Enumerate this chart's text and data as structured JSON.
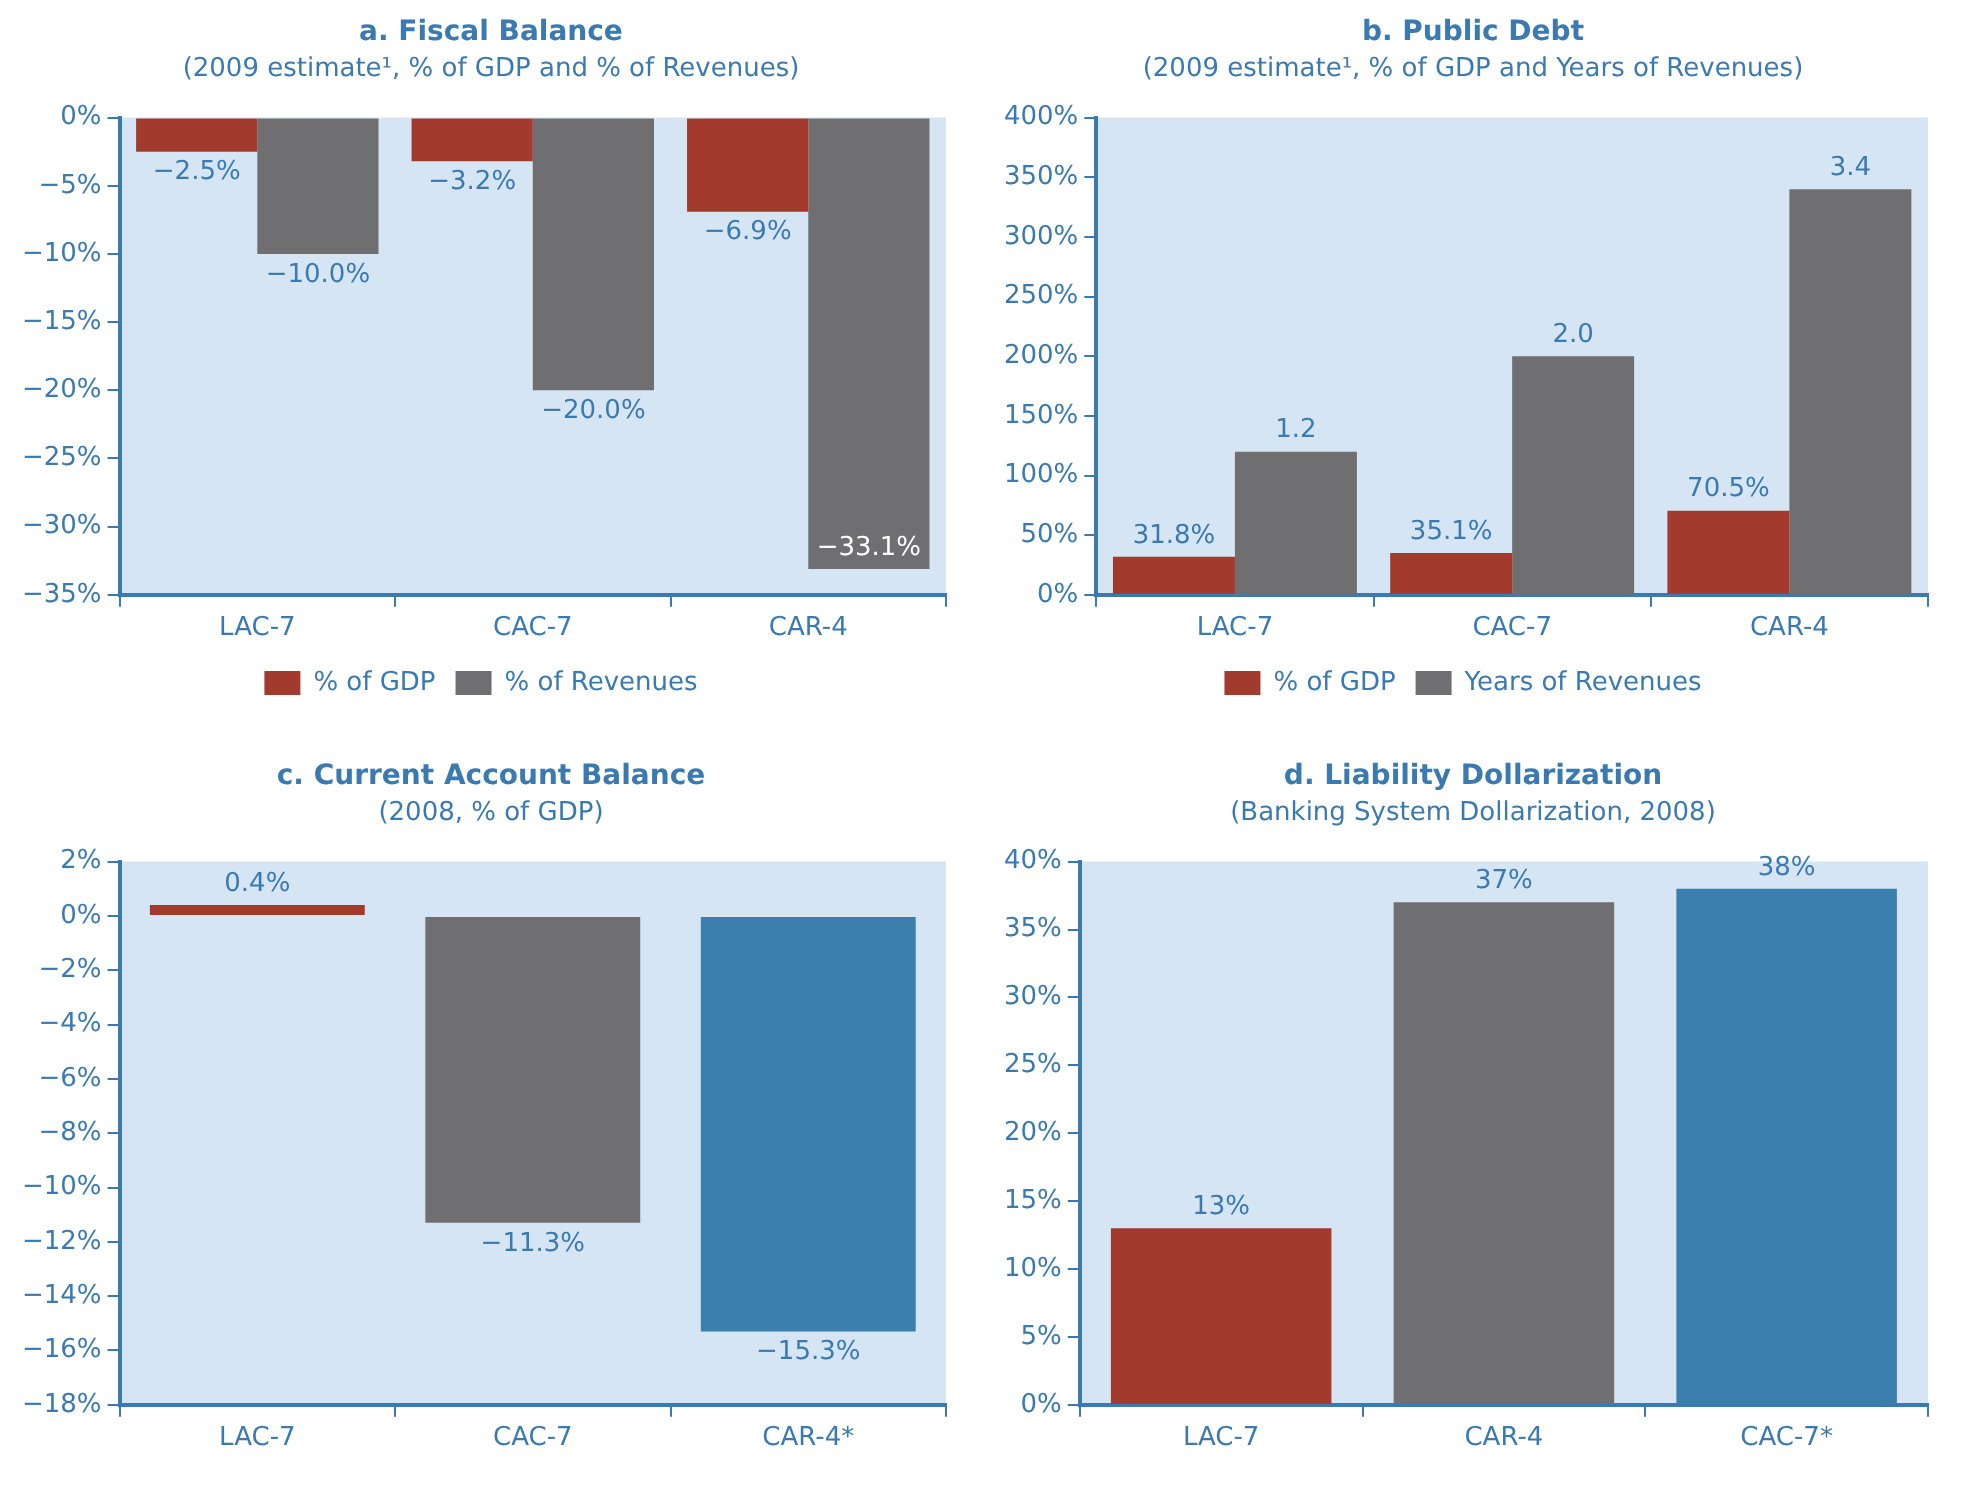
{
  "chart_data": [
    {
      "type": "bar",
      "title": "a. Fiscal Balance",
      "subtitle": "(2009 estimate¹, % of GDP and % of Revenues)",
      "categories": [
        "LAC-7",
        "CAC-7",
        "CAR-4"
      ],
      "series": [
        {
          "name": "% of GDP",
          "color": "#a33a2e",
          "values": [
            -2.5,
            -3.2,
            -6.9
          ],
          "value_labels": [
            "−2.5%",
            "−3.2%",
            "−6.9%"
          ]
        },
        {
          "name": "% of Revenues",
          "color": "#6f6f72",
          "values": [
            -10.0,
            -20.0,
            -33.1
          ],
          "value_labels": [
            "−10.0%",
            "−20.0%",
            "−33.1%"
          ]
        }
      ],
      "ylim": [
        -35,
        0
      ],
      "yticks": [
        {
          "value": 0,
          "label": "0%"
        },
        {
          "value": -5,
          "label": "−5%"
        },
        {
          "value": -10,
          "label": "−10%"
        },
        {
          "value": -15,
          "label": "−15%"
        },
        {
          "value": -20,
          "label": "−20%"
        },
        {
          "value": -25,
          "label": "−25%"
        },
        {
          "value": -30,
          "label": "−30%"
        },
        {
          "value": -35,
          "label": "−35%"
        }
      ],
      "grid": false,
      "legend": "bottom"
    },
    {
      "type": "bar",
      "title": "b. Public Debt",
      "subtitle": "(2009 estimate¹, % of GDP and Years of Revenues)",
      "categories": [
        "LAC-7",
        "CAC-7",
        "CAR-4"
      ],
      "series": [
        {
          "name": "% of GDP",
          "color": "#a33a2e",
          "values": [
            31.8,
            35.1,
            70.5
          ],
          "value_labels": [
            "31.8%",
            "35.1%",
            "70.5%"
          ]
        },
        {
          "name": "Years of Revenues",
          "color": "#6f6f72",
          "values": [
            1.2,
            2.0,
            3.4
          ],
          "value_labels": [
            "1.2",
            "2.0",
            "3.4"
          ],
          "axis": "y2"
        }
      ],
      "y2lim": [
        0,
        4
      ],
      "ylim": [
        0,
        400
      ],
      "yticks": [
        {
          "value": 0,
          "label": "0%"
        },
        {
          "value": 50,
          "label": "50%"
        },
        {
          "value": 100,
          "label": "100%"
        },
        {
          "value": 150,
          "label": "150%"
        },
        {
          "value": 200,
          "label": "200%"
        },
        {
          "value": 250,
          "label": "250%"
        },
        {
          "value": 300,
          "label": "300%"
        },
        {
          "value": 350,
          "label": "350%"
        },
        {
          "value": 400,
          "label": "400%"
        }
      ],
      "grid": false,
      "legend": "bottom"
    },
    {
      "type": "bar",
      "title": "c. Current Account Balance",
      "subtitle": "(2008, % of GDP)",
      "categories": [
        "LAC-7",
        "CAC-7",
        "CAR-4*"
      ],
      "values": [
        0.4,
        -11.3,
        -15.3
      ],
      "value_labels": [
        "0.4%",
        "−11.3%",
        "−15.3%"
      ],
      "colors": [
        "#a33a2e",
        "#6f6f72",
        "#3b7fae"
      ],
      "ylim": [
        -18,
        2
      ],
      "yticks": [
        {
          "value": 2,
          "label": "2%"
        },
        {
          "value": 0,
          "label": "0%"
        },
        {
          "value": -2,
          "label": "−2%"
        },
        {
          "value": -4,
          "label": "−4%"
        },
        {
          "value": -6,
          "label": "−6%"
        },
        {
          "value": -8,
          "label": "−8%"
        },
        {
          "value": -10,
          "label": "−10%"
        },
        {
          "value": -12,
          "label": "−12%"
        },
        {
          "value": -14,
          "label": "−14%"
        },
        {
          "value": -16,
          "label": "−16%"
        },
        {
          "value": -18,
          "label": "−18%"
        }
      ],
      "grid": false,
      "legend": false
    },
    {
      "type": "bar",
      "title": "d. Liability Dollarization",
      "subtitle": "(Banking System Dollarization, 2008)",
      "categories": [
        "LAC-7",
        "CAR-4",
        "CAC-7*"
      ],
      "values": [
        13,
        37,
        38
      ],
      "value_labels": [
        "13%",
        "37%",
        "38%"
      ],
      "colors": [
        "#a33a2e",
        "#6f6f72",
        "#3b7fae"
      ],
      "ylim": [
        0,
        40
      ],
      "yticks": [
        {
          "value": 0,
          "label": "0%"
        },
        {
          "value": 5,
          "label": "5%"
        },
        {
          "value": 10,
          "label": "10%"
        },
        {
          "value": 15,
          "label": "15%"
        },
        {
          "value": 20,
          "label": "20%"
        },
        {
          "value": 25,
          "label": "25%"
        },
        {
          "value": 30,
          "label": "30%"
        },
        {
          "value": 35,
          "label": "35%"
        },
        {
          "value": 40,
          "label": "40%"
        }
      ],
      "grid": false,
      "legend": false
    }
  ]
}
